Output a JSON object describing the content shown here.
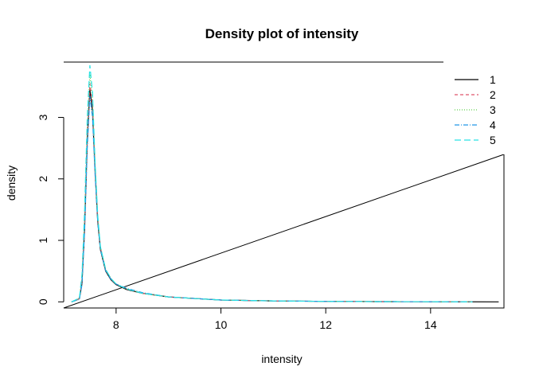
{
  "chart_data": {
    "type": "line",
    "title": "Density plot of intensity",
    "xlabel": "intensity",
    "ylabel": "density",
    "xlim": [
      7.0,
      15.4
    ],
    "ylim": [
      -0.1,
      3.9
    ],
    "xticks": [
      "8",
      "10",
      "12",
      "14"
    ],
    "yticks": [
      "0",
      "1",
      "2",
      "3"
    ],
    "grid": false,
    "legend_placement": "top-right",
    "series": [
      {
        "name": "1",
        "color": "#000000",
        "dash": "none",
        "x": [
          7.15,
          7.3,
          7.35,
          7.4,
          7.45,
          7.5,
          7.55,
          7.6,
          7.65,
          7.7,
          7.8,
          7.9,
          8.0,
          8.2,
          8.5,
          9.0,
          10.0,
          11.0,
          12.0,
          13.0,
          14.0,
          15.3
        ],
        "y": [
          0.0,
          0.05,
          0.3,
          1.2,
          2.6,
          3.45,
          3.1,
          2.1,
          1.3,
          0.85,
          0.5,
          0.36,
          0.28,
          0.2,
          0.14,
          0.08,
          0.03,
          0.015,
          0.008,
          0.004,
          0.002,
          0.0
        ]
      },
      {
        "name": "2",
        "color": "#df536b",
        "dash": "4,3",
        "x": [
          7.15,
          7.3,
          7.35,
          7.4,
          7.45,
          7.5,
          7.55,
          7.6,
          7.65,
          7.7,
          7.8,
          7.9,
          8.0,
          8.2,
          8.5,
          9.0,
          10.0,
          11.0,
          12.0,
          13.0,
          14.0,
          14.8
        ],
        "y": [
          0.0,
          0.05,
          0.35,
          1.3,
          2.7,
          3.55,
          3.2,
          2.15,
          1.35,
          0.88,
          0.52,
          0.37,
          0.29,
          0.21,
          0.14,
          0.08,
          0.03,
          0.015,
          0.008,
          0.004,
          0.002,
          0.0
        ]
      },
      {
        "name": "3",
        "color": "#61d04f",
        "dash": "1,2",
        "x": [
          7.15,
          7.3,
          7.35,
          7.4,
          7.45,
          7.5,
          7.55,
          7.6,
          7.65,
          7.7,
          7.8,
          7.9,
          8.0,
          8.2,
          8.5,
          9.0,
          10.0,
          11.0,
          12.0,
          13.0,
          14.0,
          14.8
        ],
        "y": [
          0.0,
          0.06,
          0.4,
          1.4,
          2.85,
          3.7,
          3.3,
          2.2,
          1.38,
          0.9,
          0.53,
          0.38,
          0.29,
          0.21,
          0.14,
          0.08,
          0.03,
          0.015,
          0.008,
          0.004,
          0.002,
          0.0
        ]
      },
      {
        "name": "4",
        "color": "#2297e6",
        "dash": "6,2,1,2",
        "x": [
          7.15,
          7.3,
          7.35,
          7.4,
          7.45,
          7.5,
          7.55,
          7.6,
          7.65,
          7.7,
          7.8,
          7.9,
          8.0,
          8.2,
          8.5,
          9.0,
          10.0,
          11.0,
          12.0,
          13.0,
          14.0,
          14.8
        ],
        "y": [
          0.0,
          0.04,
          0.28,
          1.15,
          2.5,
          3.35,
          3.0,
          2.05,
          1.3,
          0.86,
          0.51,
          0.37,
          0.29,
          0.22,
          0.15,
          0.08,
          0.03,
          0.015,
          0.008,
          0.004,
          0.002,
          0.0
        ]
      },
      {
        "name": "5",
        "color": "#28e2e5",
        "dash": "8,4",
        "x": [
          7.15,
          7.3,
          7.35,
          7.4,
          7.45,
          7.5,
          7.55,
          7.6,
          7.65,
          7.7,
          7.8,
          7.9,
          8.0,
          8.2,
          8.5,
          9.0,
          10.0,
          11.0,
          12.0,
          13.0,
          14.0,
          14.8
        ],
        "y": [
          0.0,
          0.06,
          0.45,
          1.5,
          3.0,
          3.85,
          3.4,
          2.25,
          1.4,
          0.9,
          0.53,
          0.38,
          0.29,
          0.21,
          0.14,
          0.08,
          0.03,
          0.015,
          0.008,
          0.004,
          0.002,
          0.0
        ]
      }
    ]
  }
}
